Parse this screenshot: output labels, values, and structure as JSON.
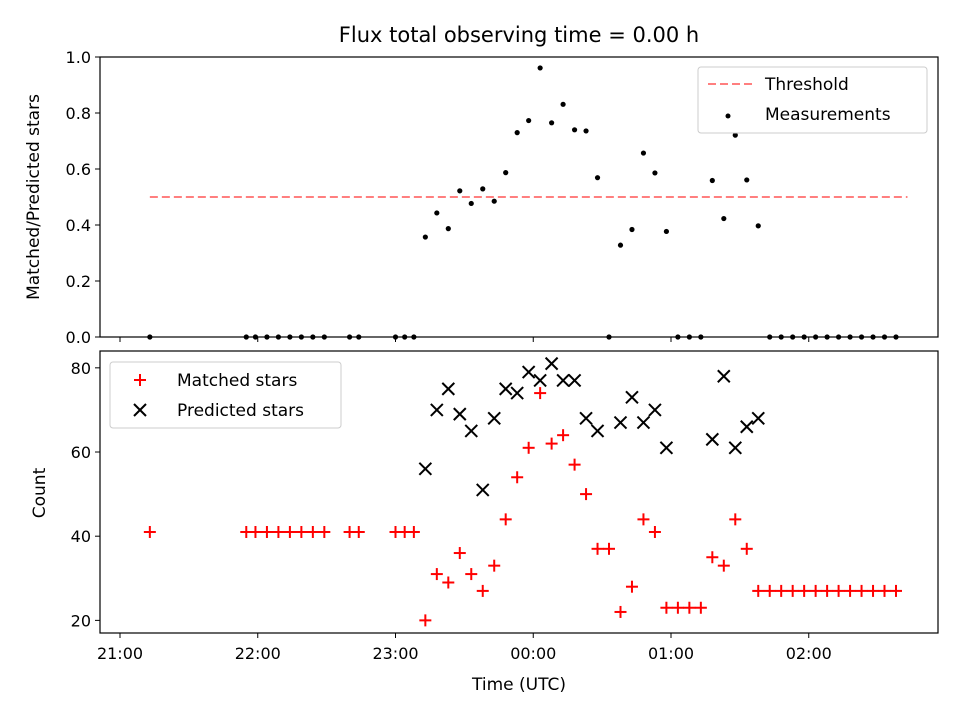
{
  "chart_data": [
    {
      "type": "scatter",
      "title": "Flux total observing time = 0.00 h",
      "xlabel": "",
      "ylabel": "Matched/Predicted stars",
      "xlim": [
        "21:00",
        "02:55"
      ],
      "ylim": [
        0,
        1.0
      ],
      "yticks": [
        "0.0",
        "0.2",
        "0.4",
        "0.6",
        "0.8",
        "1.0"
      ],
      "grid": false,
      "legend_position": "top-right",
      "threshold": {
        "name": "Threshold",
        "value": 0.5,
        "x_start": "21:13",
        "x_end": "02:43",
        "color": "#ff7f7f",
        "style": "dashed"
      },
      "series": [
        {
          "name": "Measurements",
          "color": "#000000",
          "marker": "dot",
          "points": [
            [
              "21:13",
              0
            ],
            [
              "21:55",
              0
            ],
            [
              "21:59",
              0
            ],
            [
              "22:04",
              0
            ],
            [
              "22:09",
              0
            ],
            [
              "22:14",
              0
            ],
            [
              "22:19",
              0
            ],
            [
              "22:24",
              0
            ],
            [
              "22:29",
              0
            ],
            [
              "22:40",
              0
            ],
            [
              "22:44",
              0
            ],
            [
              "23:00",
              0
            ],
            [
              "23:04",
              0
            ],
            [
              "23:08",
              0
            ],
            [
              "23:13",
              0.357
            ],
            [
              "23:18",
              0.443
            ],
            [
              "23:23",
              0.387
            ],
            [
              "23:28",
              0.522
            ],
            [
              "23:33",
              0.477
            ],
            [
              "23:38",
              0.529
            ],
            [
              "23:43",
              0.485
            ],
            [
              "23:48",
              0.587
            ],
            [
              "23:53",
              0.73
            ],
            [
              "23:58",
              0.773
            ],
            [
              "00:03",
              0.961
            ],
            [
              "00:08",
              0.765
            ],
            [
              "00:13",
              0.831
            ],
            [
              "00:18",
              0.74
            ],
            [
              "00:23",
              0.736
            ],
            [
              "00:28",
              0.569
            ],
            [
              "00:33",
              0
            ],
            [
              "00:38",
              0.328
            ],
            [
              "00:43",
              0.384
            ],
            [
              "00:48",
              0.657
            ],
            [
              "00:53",
              0.586
            ],
            [
              "00:58",
              0.377
            ],
            [
              "01:03",
              0
            ],
            [
              "01:08",
              0
            ],
            [
              "01:13",
              0
            ],
            [
              "01:18",
              0.559
            ],
            [
              "01:23",
              0.423
            ],
            [
              "01:28",
              0.721
            ],
            [
              "01:33",
              0.561
            ],
            [
              "01:38",
              0.397
            ],
            [
              "01:43",
              0
            ],
            [
              "01:48",
              0
            ],
            [
              "01:53",
              0
            ],
            [
              "01:58",
              0
            ],
            [
              "02:03",
              0
            ],
            [
              "02:08",
              0
            ],
            [
              "02:13",
              0
            ],
            [
              "02:18",
              0
            ],
            [
              "02:23",
              0
            ],
            [
              "02:28",
              0
            ],
            [
              "02:33",
              0
            ],
            [
              "02:38",
              0
            ]
          ]
        }
      ]
    },
    {
      "type": "scatter",
      "title": "",
      "xlabel": "Time (UTC)",
      "ylabel": "Count",
      "xlim": [
        "21:00",
        "02:55"
      ],
      "xticks": [
        "21:00",
        "22:00",
        "23:00",
        "00:00",
        "01:00",
        "02:00"
      ],
      "ylim": [
        17,
        84
      ],
      "yticks": [
        "20",
        "40",
        "60",
        "80"
      ],
      "grid": false,
      "legend_position": "top-left",
      "series": [
        {
          "name": "Matched stars",
          "color": "#ff0000",
          "marker": "plus",
          "points": [
            [
              "21:13",
              41
            ],
            [
              "21:55",
              41
            ],
            [
              "21:59",
              41
            ],
            [
              "22:04",
              41
            ],
            [
              "22:09",
              41
            ],
            [
              "22:14",
              41
            ],
            [
              "22:19",
              41
            ],
            [
              "22:24",
              41
            ],
            [
              "22:29",
              41
            ],
            [
              "22:40",
              41
            ],
            [
              "22:44",
              41
            ],
            [
              "23:00",
              41
            ],
            [
              "23:04",
              41
            ],
            [
              "23:08",
              41
            ],
            [
              "23:13",
              20
            ],
            [
              "23:18",
              31
            ],
            [
              "23:23",
              29
            ],
            [
              "23:28",
              36
            ],
            [
              "23:33",
              31
            ],
            [
              "23:38",
              27
            ],
            [
              "23:43",
              33
            ],
            [
              "23:48",
              44
            ],
            [
              "23:53",
              54
            ],
            [
              "23:58",
              61
            ],
            [
              "00:03",
              74
            ],
            [
              "00:08",
              62
            ],
            [
              "00:13",
              64
            ],
            [
              "00:18",
              57
            ],
            [
              "00:23",
              50
            ],
            [
              "00:28",
              37
            ],
            [
              "00:33",
              37
            ],
            [
              "00:38",
              22
            ],
            [
              "00:43",
              28
            ],
            [
              "00:48",
              44
            ],
            [
              "00:53",
              41
            ],
            [
              "00:58",
              23
            ],
            [
              "01:03",
              23
            ],
            [
              "01:08",
              23
            ],
            [
              "01:13",
              23
            ],
            [
              "01:18",
              35
            ],
            [
              "01:23",
              33
            ],
            [
              "01:28",
              44
            ],
            [
              "01:33",
              37
            ],
            [
              "01:38",
              27
            ],
            [
              "01:43",
              27
            ],
            [
              "01:48",
              27
            ],
            [
              "01:53",
              27
            ],
            [
              "01:58",
              27
            ],
            [
              "02:03",
              27
            ],
            [
              "02:08",
              27
            ],
            [
              "02:13",
              27
            ],
            [
              "02:18",
              27
            ],
            [
              "02:23",
              27
            ],
            [
              "02:28",
              27
            ],
            [
              "02:33",
              27
            ],
            [
              "02:38",
              27
            ]
          ]
        },
        {
          "name": "Predicted stars",
          "color": "#000000",
          "marker": "x",
          "points": [
            [
              "23:13",
              56
            ],
            [
              "23:18",
              70
            ],
            [
              "23:23",
              75
            ],
            [
              "23:28",
              69
            ],
            [
              "23:33",
              65
            ],
            [
              "23:38",
              51
            ],
            [
              "23:43",
              68
            ],
            [
              "23:48",
              75
            ],
            [
              "23:53",
              74
            ],
            [
              "23:58",
              79
            ],
            [
              "00:03",
              77
            ],
            [
              "00:08",
              81
            ],
            [
              "00:13",
              77
            ],
            [
              "00:18",
              77
            ],
            [
              "00:23",
              68
            ],
            [
              "00:28",
              65
            ],
            [
              "00:38",
              67
            ],
            [
              "00:43",
              73
            ],
            [
              "00:48",
              67
            ],
            [
              "00:53",
              70
            ],
            [
              "00:58",
              61
            ],
            [
              "01:18",
              63
            ],
            [
              "01:23",
              78
            ],
            [
              "01:28",
              61
            ],
            [
              "01:33",
              66
            ],
            [
              "01:38",
              68
            ]
          ]
        }
      ]
    }
  ]
}
